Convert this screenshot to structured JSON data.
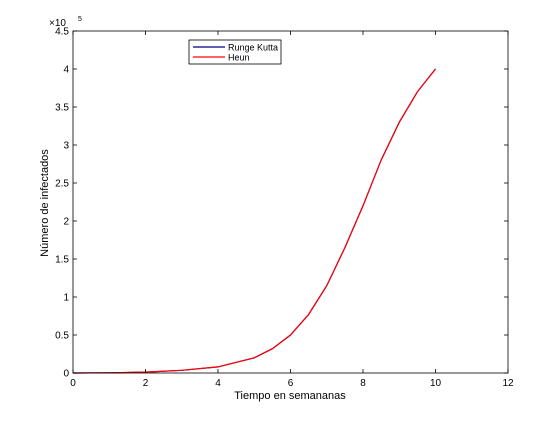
{
  "chart_data": {
    "type": "line",
    "xlabel": "Tiempo en semananas",
    "ylabel": "Número de infectados",
    "xlim": [
      0,
      12
    ],
    "ylim": [
      0,
      450000
    ],
    "x_ticks": [
      0,
      2,
      4,
      6,
      8,
      10,
      12
    ],
    "x_tick_labels": [
      "0",
      "2",
      "4",
      "6",
      "8",
      "10",
      "12"
    ],
    "y_ticks": [
      0,
      50000,
      100000,
      150000,
      200000,
      250000,
      300000,
      350000,
      400000,
      450000
    ],
    "y_tick_labels": [
      "0",
      "0.5",
      "1",
      "1.5",
      "2",
      "2.5",
      "3",
      "3.5",
      "4",
      "4.5"
    ],
    "y_exponent_base": "×10",
    "y_exponent_power": "5",
    "grid": false,
    "legend": "top-center",
    "series": [
      {
        "name": "Runge Kutta",
        "color": "#000080",
        "x": [
          0,
          1,
          2,
          3,
          4,
          5,
          5.5,
          6,
          6.5,
          7,
          7.5,
          8,
          8.5,
          9,
          9.5,
          10
        ],
        "y": [
          20,
          250,
          1200,
          3500,
          8000,
          20000,
          32000,
          50000,
          77000,
          115000,
          165000,
          220000,
          280000,
          330000,
          370000,
          400000
        ]
      },
      {
        "name": "Heun",
        "color": "#ff0000",
        "x": [
          0,
          1,
          2,
          3,
          4,
          5,
          5.5,
          6,
          6.5,
          7,
          7.5,
          8,
          8.5,
          9,
          9.5,
          10
        ],
        "y": [
          20,
          250,
          1200,
          3500,
          8000,
          20000,
          32000,
          50000,
          77000,
          115000,
          165000,
          220000,
          280000,
          330000,
          370000,
          400000
        ]
      }
    ]
  }
}
